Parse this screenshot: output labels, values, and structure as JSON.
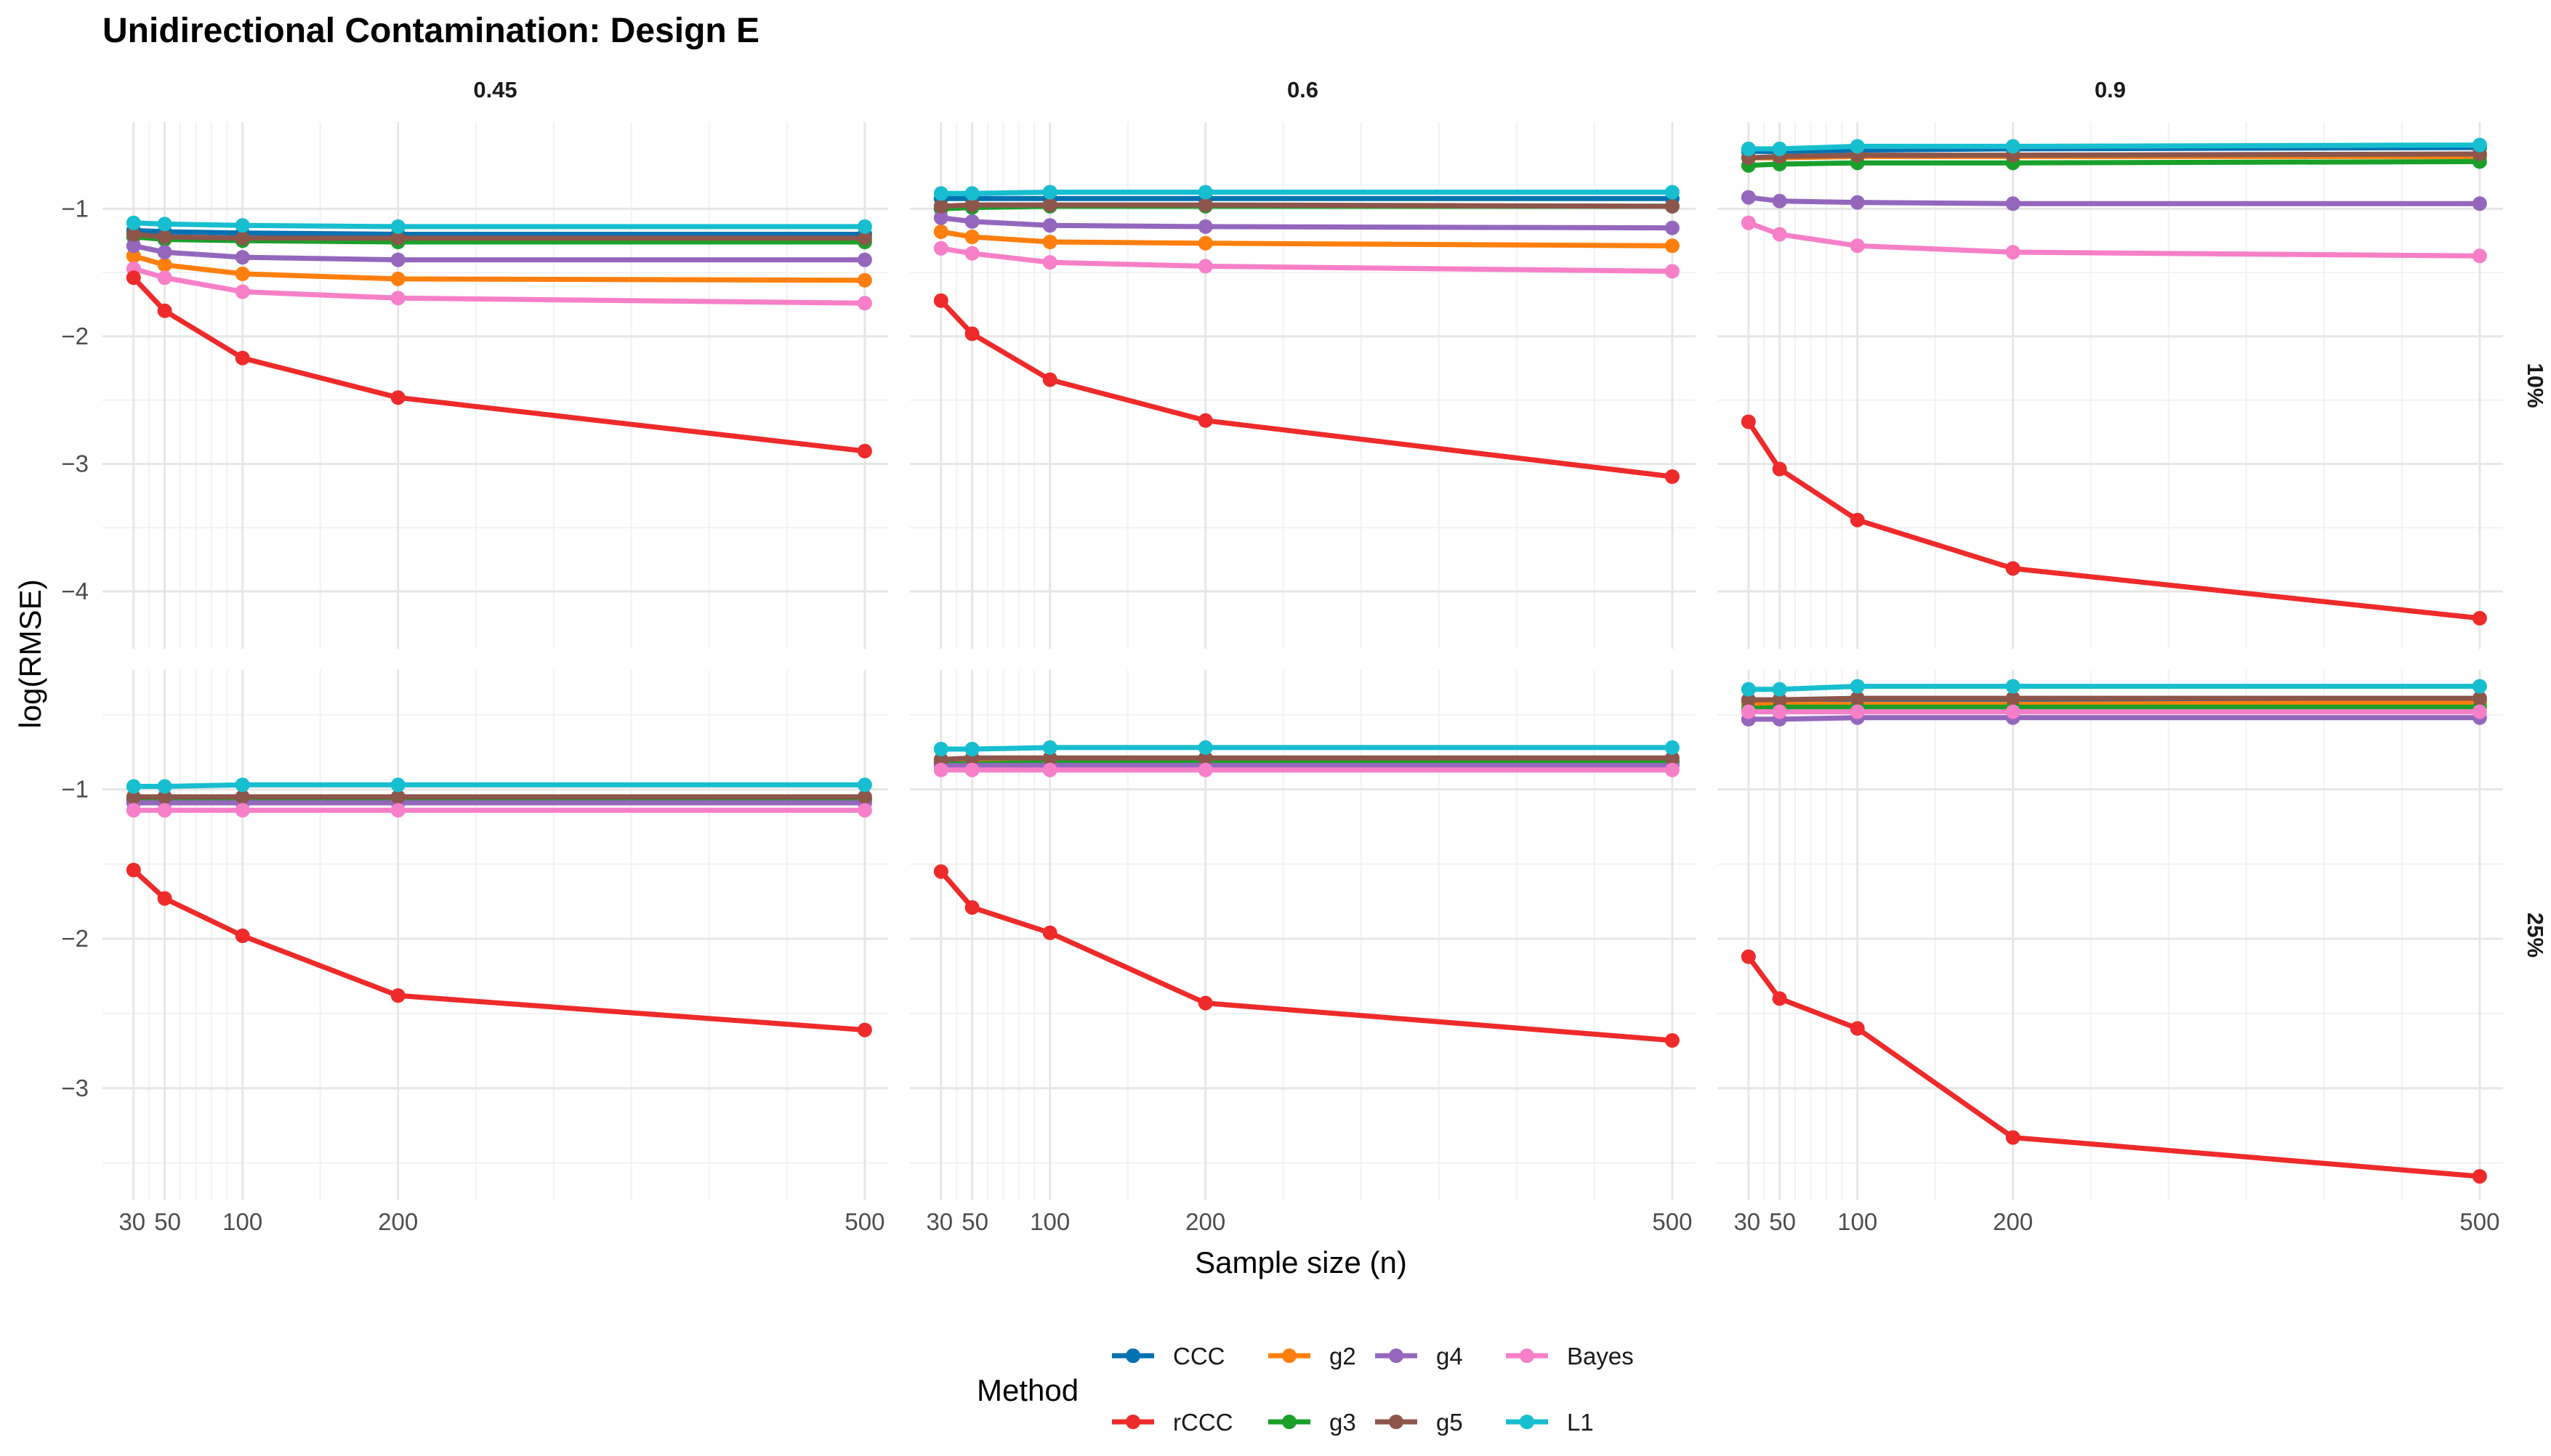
{
  "chart_data": {
    "type": "line",
    "title": "Unidirectional Contamination: Design E",
    "xlabel": "Sample size (n)",
    "ylabel": "log(RMSE)",
    "x": [
      30,
      50,
      100,
      200,
      500
    ],
    "x_ticks": [
      30,
      50,
      100,
      200,
      500
    ],
    "x_tick_labels": [
      "30",
      "50",
      "100",
      "200",
      "500"
    ],
    "xlim": [
      10,
      515
    ],
    "grid": true,
    "legend": {
      "title": "Method",
      "position": "bottom",
      "order": [
        "CCC",
        "rCCC",
        "g2",
        "g3",
        "g4",
        "g5",
        "Bayes",
        "L1"
      ]
    },
    "colors": {
      "CCC": "#0072B2",
      "rCCC": "#EE2A2A",
      "g2": "#FF7F0E",
      "g3": "#1AA02A",
      "g4": "#9467BD",
      "g5": "#8C564B",
      "Bayes": "#F77FC8",
      "L1": "#17BECF"
    },
    "draw_order": [
      "CCC",
      "g2",
      "g3",
      "g4",
      "g5",
      "Bayes",
      "L1",
      "rCCC"
    ],
    "columns": [
      "0.45",
      "0.6",
      "0.9"
    ],
    "rows": [
      "10%",
      "25%"
    ],
    "row_scales": [
      {
        "ylim": [
          -4.45,
          -0.32
        ],
        "y_ticks": [
          -1,
          -2,
          -3,
          -4
        ],
        "y_tick_labels": [
          "−1",
          "−2",
          "−3",
          "−4"
        ],
        "minor_ticks": [
          -1.5,
          -2.5,
          -3.5
        ]
      },
      {
        "ylim": [
          -3.75,
          -0.2
        ],
        "y_ticks": [
          -1,
          -2,
          -3
        ],
        "y_tick_labels": [
          "−1",
          "−2",
          "−3"
        ],
        "minor_ticks": [
          -0.5,
          -1.5,
          -2.5,
          -3.5
        ]
      }
    ],
    "panels": [
      {
        "col": "0.45",
        "row": "10%",
        "series": [
          {
            "name": "CCC",
            "values": [
              -1.17,
              -1.18,
              -1.19,
              -1.2,
              -1.2
            ]
          },
          {
            "name": "rCCC",
            "values": [
              -1.54,
              -1.8,
              -2.17,
              -2.48,
              -2.9
            ]
          },
          {
            "name": "g2",
            "values": [
              -1.37,
              -1.44,
              -1.51,
              -1.55,
              -1.56
            ]
          },
          {
            "name": "g3",
            "values": [
              -1.22,
              -1.24,
              -1.25,
              -1.26,
              -1.26
            ]
          },
          {
            "name": "g4",
            "values": [
              -1.29,
              -1.34,
              -1.38,
              -1.4,
              -1.4
            ]
          },
          {
            "name": "g5",
            "values": [
              -1.2,
              -1.22,
              -1.23,
              -1.23,
              -1.23
            ]
          },
          {
            "name": "Bayes",
            "values": [
              -1.47,
              -1.54,
              -1.65,
              -1.7,
              -1.74
            ]
          },
          {
            "name": "L1",
            "values": [
              -1.11,
              -1.12,
              -1.13,
              -1.14,
              -1.14
            ]
          }
        ]
      },
      {
        "col": "0.6",
        "row": "10%",
        "series": [
          {
            "name": "CCC",
            "values": [
              -0.92,
              -0.92,
              -0.92,
              -0.92,
              -0.92
            ]
          },
          {
            "name": "rCCC",
            "values": [
              -1.72,
              -1.98,
              -2.34,
              -2.66,
              -3.1
            ]
          },
          {
            "name": "g2",
            "values": [
              -1.18,
              -1.22,
              -1.26,
              -1.27,
              -1.29
            ]
          },
          {
            "name": "g3",
            "values": [
              -1.0,
              -0.99,
              -0.98,
              -0.98,
              -0.98
            ]
          },
          {
            "name": "g4",
            "values": [
              -1.07,
              -1.1,
              -1.13,
              -1.14,
              -1.15
            ]
          },
          {
            "name": "g5",
            "values": [
              -0.98,
              -0.97,
              -0.97,
              -0.97,
              -0.98
            ]
          },
          {
            "name": "Bayes",
            "values": [
              -1.31,
              -1.35,
              -1.42,
              -1.45,
              -1.49
            ]
          },
          {
            "name": "L1",
            "values": [
              -0.88,
              -0.88,
              -0.87,
              -0.87,
              -0.87
            ]
          }
        ]
      },
      {
        "col": "0.9",
        "row": "10%",
        "series": [
          {
            "name": "CCC",
            "values": [
              -0.55,
              -0.55,
              -0.54,
              -0.53,
              -0.52
            ]
          },
          {
            "name": "rCCC",
            "values": [
              -2.67,
              -3.04,
              -3.44,
              -3.82,
              -4.21
            ]
          },
          {
            "name": "g2",
            "values": [
              -0.6,
              -0.6,
              -0.59,
              -0.59,
              -0.59
            ]
          },
          {
            "name": "g3",
            "values": [
              -0.66,
              -0.65,
              -0.64,
              -0.64,
              -0.63
            ]
          },
          {
            "name": "g4",
            "values": [
              -0.91,
              -0.94,
              -0.95,
              -0.96,
              -0.96
            ]
          },
          {
            "name": "g5",
            "values": [
              -0.6,
              -0.59,
              -0.58,
              -0.58,
              -0.57
            ]
          },
          {
            "name": "Bayes",
            "values": [
              -1.11,
              -1.2,
              -1.29,
              -1.34,
              -1.37
            ]
          },
          {
            "name": "L1",
            "values": [
              -0.53,
              -0.53,
              -0.51,
              -0.51,
              -0.5
            ]
          }
        ]
      },
      {
        "col": "0.45",
        "row": "25%",
        "series": [
          {
            "name": "CCC",
            "values": [
              -1.08,
              -1.08,
              -1.08,
              -1.08,
              -1.08
            ]
          },
          {
            "name": "rCCC",
            "values": [
              -1.54,
              -1.73,
              -1.98,
              -2.38,
              -2.61
            ]
          },
          {
            "name": "g2",
            "values": [
              -1.06,
              -1.06,
              -1.06,
              -1.06,
              -1.06
            ]
          },
          {
            "name": "g3",
            "values": [
              -1.07,
              -1.07,
              -1.07,
              -1.07,
              -1.07
            ]
          },
          {
            "name": "g4",
            "values": [
              -1.09,
              -1.09,
              -1.09,
              -1.09,
              -1.09
            ]
          },
          {
            "name": "g5",
            "values": [
              -1.05,
              -1.05,
              -1.05,
              -1.05,
              -1.05
            ]
          },
          {
            "name": "Bayes",
            "values": [
              -1.14,
              -1.14,
              -1.14,
              -1.14,
              -1.14
            ]
          },
          {
            "name": "L1",
            "values": [
              -0.98,
              -0.98,
              -0.97,
              -0.97,
              -0.97
            ]
          }
        ]
      },
      {
        "col": "0.6",
        "row": "25%",
        "series": [
          {
            "name": "CCC",
            "values": [
              -0.82,
              -0.82,
              -0.81,
              -0.81,
              -0.81
            ]
          },
          {
            "name": "rCCC",
            "values": [
              -1.55,
              -1.79,
              -1.96,
              -2.43,
              -2.68
            ]
          },
          {
            "name": "g2",
            "values": [
              -0.82,
              -0.82,
              -0.81,
              -0.81,
              -0.81
            ]
          },
          {
            "name": "g3",
            "values": [
              -0.83,
              -0.83,
              -0.82,
              -0.82,
              -0.82
            ]
          },
          {
            "name": "g4",
            "values": [
              -0.84,
              -0.84,
              -0.84,
              -0.84,
              -0.84
            ]
          },
          {
            "name": "g5",
            "values": [
              -0.8,
              -0.79,
              -0.79,
              -0.79,
              -0.79
            ]
          },
          {
            "name": "Bayes",
            "values": [
              -0.87,
              -0.87,
              -0.87,
              -0.87,
              -0.87
            ]
          },
          {
            "name": "L1",
            "values": [
              -0.73,
              -0.73,
              -0.72,
              -0.72,
              -0.72
            ]
          }
        ]
      },
      {
        "col": "0.9",
        "row": "25%",
        "series": [
          {
            "name": "CCC",
            "values": [
              -0.42,
              -0.42,
              -0.41,
              -0.41,
              -0.41
            ]
          },
          {
            "name": "rCCC",
            "values": [
              -2.12,
              -2.4,
              -2.6,
              -3.33,
              -3.59
            ]
          },
          {
            "name": "g2",
            "values": [
              -0.43,
              -0.43,
              -0.43,
              -0.43,
              -0.42
            ]
          },
          {
            "name": "g3",
            "values": [
              -0.46,
              -0.45,
              -0.45,
              -0.45,
              -0.45
            ]
          },
          {
            "name": "g4",
            "values": [
              -0.53,
              -0.53,
              -0.52,
              -0.52,
              -0.52
            ]
          },
          {
            "name": "g5",
            "values": [
              -0.4,
              -0.4,
              -0.39,
              -0.39,
              -0.39
            ]
          },
          {
            "name": "Bayes",
            "values": [
              -0.48,
              -0.48,
              -0.48,
              -0.48,
              -0.48
            ]
          },
          {
            "name": "L1",
            "values": [
              -0.33,
              -0.33,
              -0.31,
              -0.31,
              -0.31
            ]
          }
        ]
      }
    ]
  }
}
